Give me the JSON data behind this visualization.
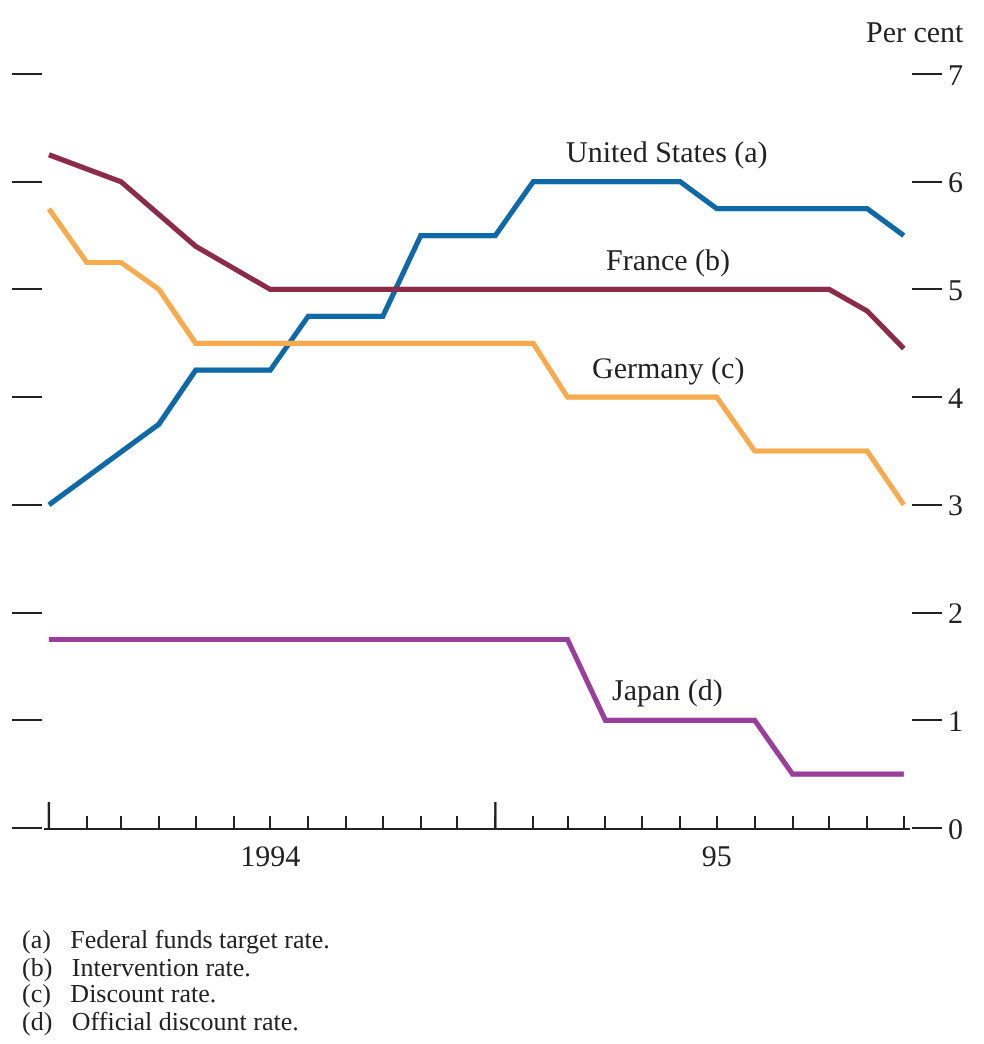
{
  "chart_data": {
    "type": "line",
    "ylabel": "Per cent",
    "ylim": [
      0,
      7
    ],
    "yticks": [
      0,
      1,
      2,
      3,
      4,
      5,
      6,
      7
    ],
    "xlim": [
      "1993-12-28",
      "1995-12-06"
    ],
    "xticks": [
      {
        "value": "1994-01-01",
        "label": null
      },
      {
        "value": "1994-07-01",
        "label": "1994"
      },
      {
        "value": "1995-01-01",
        "label": null
      },
      {
        "value": "1995-07-01",
        "label": "95"
      }
    ],
    "legend": false,
    "marker": "none",
    "line_style": "solid",
    "series": [
      {
        "name": "United States (a)",
        "color": "#0f69a6",
        "x": [
          "1994-01",
          "1994-04",
          "1994-05",
          "1994-07",
          "1994-08",
          "1994-10",
          "1994-11",
          "1995-01",
          "1995-02",
          "1995-06",
          "1995-07",
          "1995-11",
          "1995-12"
        ],
        "values": [
          3,
          3.75,
          4.25,
          4.25,
          4.75,
          4.75,
          5.5,
          5.5,
          6,
          6,
          5.75,
          5.75,
          5.5
        ]
      },
      {
        "name": "France (b)",
        "color": "#8c2b47",
        "x": [
          "1994-01",
          "1994-03",
          "1994-05",
          "1994-07",
          "1995-10",
          "1995-11",
          "1995-12"
        ],
        "values": [
          6.25,
          6,
          5.4,
          5,
          5,
          4.8,
          4.45
        ]
      },
      {
        "name": "Germany (c)",
        "color": "#f7aa4e",
        "x": [
          "1994-01",
          "1994-02",
          "1994-03",
          "1994-04",
          "1994-05",
          "1995-02",
          "1995-03",
          "1995-07",
          "1995-08",
          "1995-11",
          "1995-12"
        ],
        "values": [
          5.75,
          5.25,
          5.25,
          5,
          4.5,
          4.5,
          4,
          4,
          3.5,
          3.5,
          3
        ]
      },
      {
        "name": "Japan (d)",
        "color": "#993f9b",
        "x": [
          "1994-01",
          "1995-03",
          "1995-04",
          "1995-08",
          "1995-09",
          "1995-12"
        ],
        "values": [
          1.75,
          1.75,
          1,
          1,
          0.5,
          0.5
        ]
      }
    ],
    "annotations": [
      "(a)   Federal funds target rate.",
      "(b)   Intervention rate.",
      "(c)   Discount rate.",
      "(d)   Official discount rate."
    ]
  }
}
